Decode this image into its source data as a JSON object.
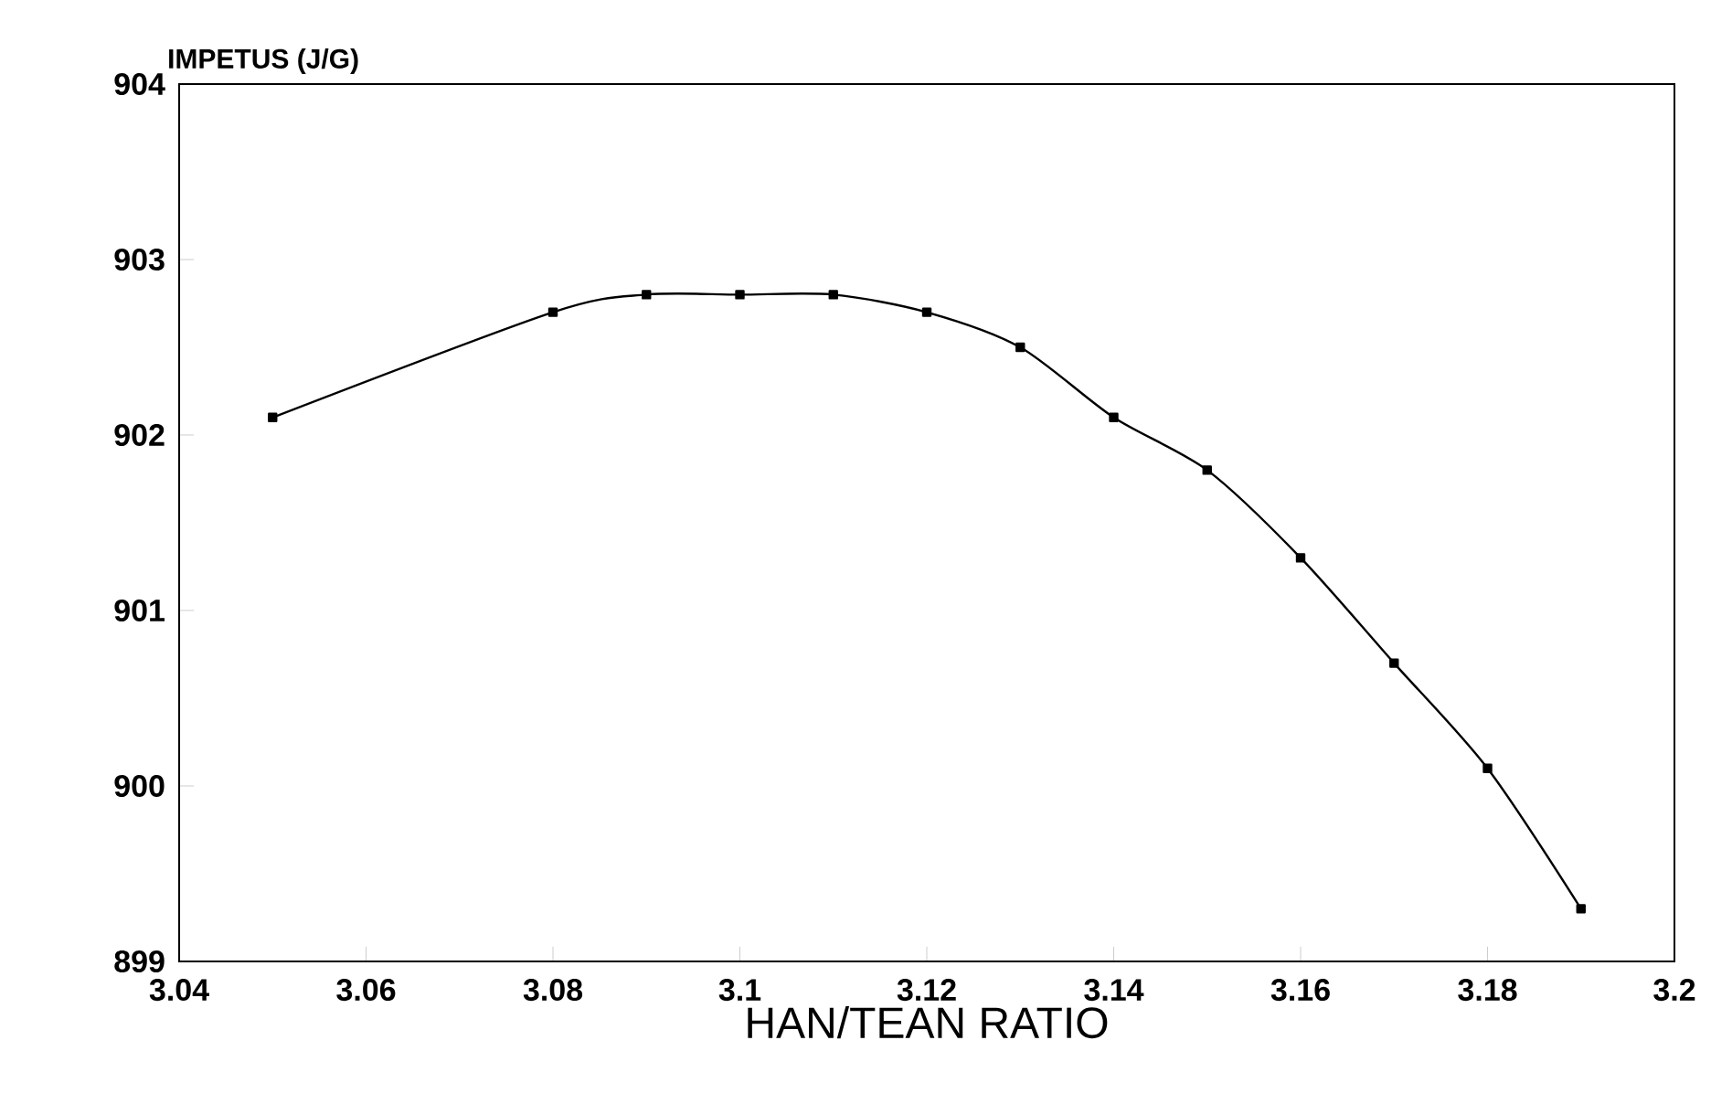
{
  "chart_data": {
    "type": "line",
    "xlabel": "HAN/TEAN RATIO",
    "ylabel": "IMPETUS (J/G)",
    "x": [
      3.05,
      3.08,
      3.09,
      3.1,
      3.11,
      3.12,
      3.13,
      3.14,
      3.15,
      3.16,
      3.17,
      3.18,
      3.19
    ],
    "series": [
      {
        "color": "#000000",
        "values": [
          902.1,
          902.7,
          902.8,
          902.8,
          902.8,
          902.7,
          902.5,
          902.1,
          901.8,
          901.3,
          900.7,
          900.1,
          899.3
        ]
      }
    ],
    "xlim": [
      3.04,
      3.2
    ],
    "ylim": [
      899,
      904
    ],
    "xticks": [
      3.04,
      3.06,
      3.08,
      3.1,
      3.12,
      3.14,
      3.16,
      3.18,
      3.2
    ],
    "yticks": [
      899,
      900,
      901,
      902,
      903,
      904
    ],
    "grid": false,
    "marker": "square",
    "line_style": "solid"
  }
}
